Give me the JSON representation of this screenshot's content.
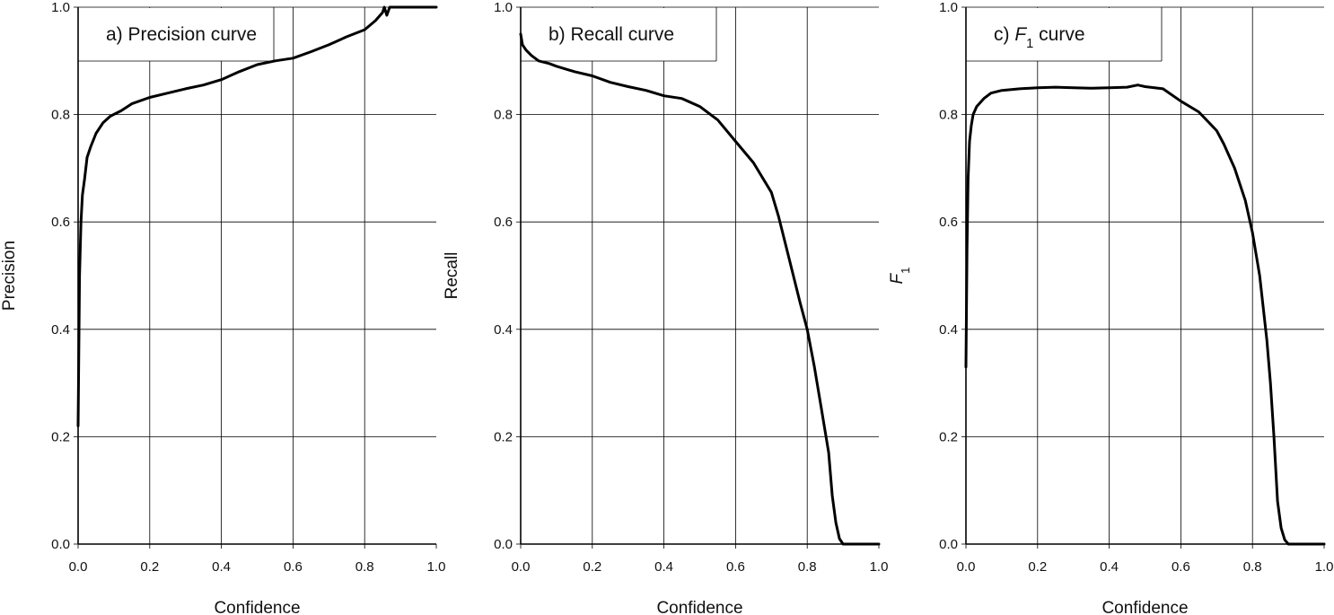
{
  "chart_data": [
    {
      "type": "line",
      "title": "a) Precision curve",
      "title_parts": [
        {
          "text": "a) Precision curve"
        }
      ],
      "xlabel": "Confidence",
      "ylabel": "Precision",
      "ylabel_parts": [
        {
          "text": "Precision"
        }
      ],
      "xlim": [
        0,
        1
      ],
      "ylim": [
        0,
        1
      ],
      "xticks": [
        "0.0",
        "0.2",
        "0.4",
        "0.6",
        "0.8",
        "1.0"
      ],
      "yticks": [
        "0.0",
        "0.2",
        "0.4",
        "0.6",
        "0.8",
        "1.0"
      ],
      "grid": true,
      "series": [
        {
          "x": [
            0.0,
            0.004,
            0.008,
            0.012,
            0.018,
            0.025,
            0.035,
            0.05,
            0.07,
            0.09,
            0.12,
            0.15,
            0.2,
            0.25,
            0.3,
            0.35,
            0.4,
            0.45,
            0.5,
            0.55,
            0.6,
            0.65,
            0.7,
            0.75,
            0.8,
            0.83,
            0.85,
            0.855,
            0.862,
            0.87,
            0.9,
            0.95,
            1.0
          ],
          "y": [
            0.22,
            0.5,
            0.6,
            0.65,
            0.68,
            0.72,
            0.74,
            0.765,
            0.785,
            0.797,
            0.807,
            0.82,
            0.832,
            0.84,
            0.848,
            0.855,
            0.865,
            0.88,
            0.893,
            0.9,
            0.905,
            0.917,
            0.93,
            0.945,
            0.958,
            0.975,
            0.99,
            1.0,
            0.985,
            1.0,
            1.0,
            1.0,
            1.0
          ]
        }
      ]
    },
    {
      "type": "line",
      "title": "b) Recall curve",
      "title_parts": [
        {
          "text": "b) Recall curve"
        }
      ],
      "xlabel": "Confidence",
      "ylabel": "Recall",
      "ylabel_parts": [
        {
          "text": "Recall"
        }
      ],
      "xlim": [
        0,
        1
      ],
      "ylim": [
        0,
        1
      ],
      "xticks": [
        "0.0",
        "0.2",
        "0.4",
        "0.6",
        "0.8",
        "1.0"
      ],
      "yticks": [
        "0.0",
        "0.2",
        "0.4",
        "0.6",
        "0.8",
        "1.0"
      ],
      "grid": true,
      "series": [
        {
          "x": [
            0.0,
            0.005,
            0.015,
            0.03,
            0.05,
            0.08,
            0.1,
            0.15,
            0.2,
            0.25,
            0.3,
            0.35,
            0.4,
            0.45,
            0.5,
            0.55,
            0.6,
            0.65,
            0.7,
            0.72,
            0.75,
            0.78,
            0.8,
            0.82,
            0.84,
            0.86,
            0.87,
            0.88,
            0.89,
            0.9,
            0.95,
            1.0
          ],
          "y": [
            0.95,
            0.93,
            0.92,
            0.91,
            0.9,
            0.895,
            0.89,
            0.88,
            0.872,
            0.86,
            0.852,
            0.845,
            0.835,
            0.83,
            0.815,
            0.79,
            0.75,
            0.71,
            0.655,
            0.61,
            0.53,
            0.45,
            0.4,
            0.33,
            0.25,
            0.17,
            0.09,
            0.04,
            0.01,
            0.0,
            0.0,
            0.0
          ]
        }
      ]
    },
    {
      "type": "line",
      "title": "c) F1 curve",
      "title_parts": [
        {
          "text": "c) "
        },
        {
          "text": "F",
          "italic": true
        },
        {
          "text": "1",
          "sub": true
        },
        {
          "text": " curve"
        }
      ],
      "xlabel": "Confidence",
      "ylabel": "F1",
      "ylabel_parts": [
        {
          "text": "F",
          "italic": true
        },
        {
          "text": "1",
          "sub": true
        }
      ],
      "xlim": [
        0,
        1
      ],
      "ylim": [
        0,
        1
      ],
      "xticks": [
        "0.0",
        "0.2",
        "0.4",
        "0.6",
        "0.8",
        "1.0"
      ],
      "yticks": [
        "0.0",
        "0.2",
        "0.4",
        "0.6",
        "0.8",
        "1.0"
      ],
      "grid": true,
      "series": [
        {
          "x": [
            0.0,
            0.003,
            0.006,
            0.01,
            0.015,
            0.02,
            0.03,
            0.05,
            0.07,
            0.1,
            0.15,
            0.2,
            0.25,
            0.3,
            0.35,
            0.4,
            0.45,
            0.48,
            0.5,
            0.55,
            0.6,
            0.65,
            0.7,
            0.72,
            0.75,
            0.78,
            0.8,
            0.82,
            0.84,
            0.85,
            0.86,
            0.87,
            0.88,
            0.89,
            0.9,
            0.95,
            1.0
          ],
          "y": [
            0.33,
            0.55,
            0.68,
            0.75,
            0.78,
            0.8,
            0.815,
            0.83,
            0.84,
            0.845,
            0.848,
            0.85,
            0.851,
            0.85,
            0.849,
            0.85,
            0.851,
            0.855,
            0.852,
            0.848,
            0.825,
            0.805,
            0.77,
            0.745,
            0.7,
            0.64,
            0.58,
            0.5,
            0.38,
            0.3,
            0.2,
            0.08,
            0.03,
            0.008,
            0.0,
            0.0,
            0.0
          ]
        }
      ]
    }
  ]
}
